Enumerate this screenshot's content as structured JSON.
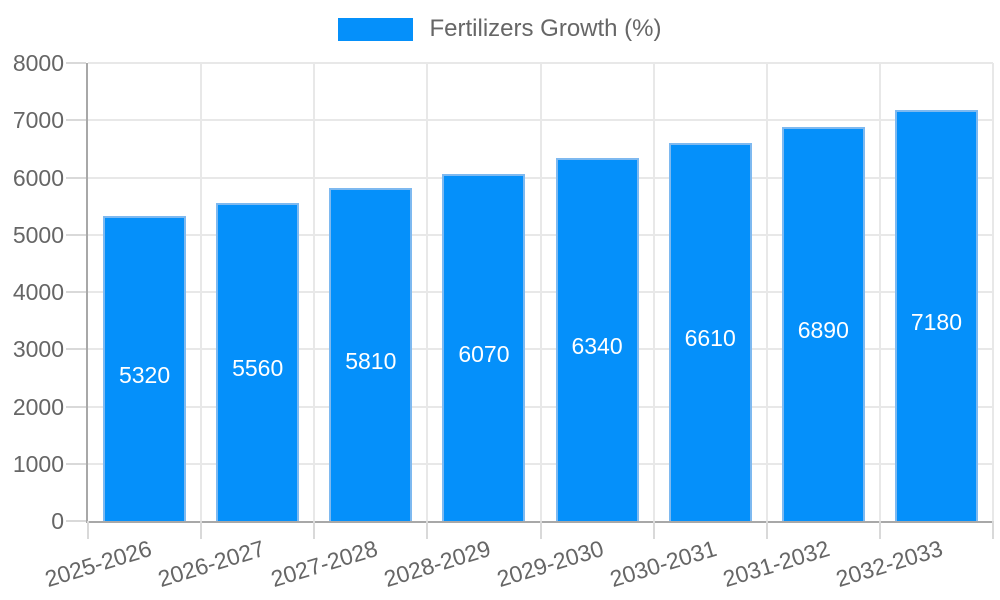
{
  "chart_data": {
    "type": "bar",
    "title": "",
    "xlabel": "",
    "ylabel": "",
    "categories": [
      "2025-2026",
      "2026-2027",
      "2027-2028",
      "2028-2029",
      "2029-2030",
      "2030-2031",
      "2031-2032",
      "2032-2033"
    ],
    "series": [
      {
        "name": "Fertilizers Growth (%)",
        "values": [
          5320,
          5560,
          5810,
          6070,
          6340,
          6610,
          6890,
          7180
        ]
      }
    ],
    "ylim": [
      0,
      8000
    ],
    "yticks": [
      0,
      1000,
      2000,
      3000,
      4000,
      5000,
      6000,
      7000,
      8000
    ],
    "grid": true,
    "legend_position": "top",
    "bar_value_labels_shown": true,
    "x_tick_rotation_deg": -17
  },
  "colors": {
    "bar_fill": "#0590FA",
    "bar_border": "#7EB9F0",
    "grid_line": "#E8E8E8",
    "tick_mark": "#D9D9D9",
    "axis_line": "#A8A8A8",
    "tick_text": "#666666",
    "legend_text": "#666666",
    "bar_label_text": "#FFFFFF",
    "background": "#FFFFFF"
  }
}
